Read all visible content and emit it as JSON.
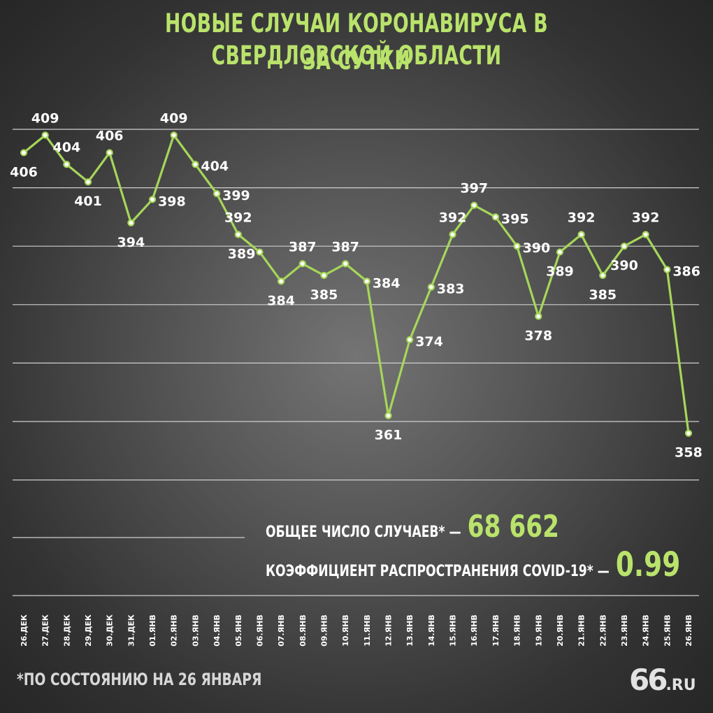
{
  "title_line1": "НОВЫЕ СЛУЧАИ КОРОНАВИРУСА В СВЕРДЛОВСКОЙ ОБЛАСТИ",
  "title_line2": "ЗА СУТКИ",
  "stats": {
    "total_label": "ОБЩЕЕ ЧИСЛО СЛУЧАЕВ* —",
    "total_value": "68 662",
    "coef_label": "КОЭФФИЦИЕНТ РАСПРОСТРАНЕНИЯ COVID-19* —",
    "coef_value": "0.99"
  },
  "footnote": "*ПО СОСТОЯНИЮ НА 26 ЯНВАРЯ",
  "logo": {
    "number": "66",
    "domain": ".RU"
  },
  "colors": {
    "line": "#a6d65a",
    "accent": "#b9e36b",
    "grid": "#cfcfcf",
    "text": "#ffffff"
  },
  "chart_data": {
    "type": "line",
    "title": "НОВЫЕ СЛУЧАИ КОРОНАВИРУСА В СВЕРДЛОВСКОЙ ОБЛАСТИ ЗА СУТКИ",
    "categories": [
      "26.ДЕК",
      "27.ДЕК",
      "28.ДЕК",
      "29.ДЕК",
      "30.ДЕК",
      "31.ДЕК",
      "01.ЯНВ",
      "02.ЯНВ",
      "03.ЯНВ",
      "04.ЯНВ",
      "05.ЯНВ",
      "06.ЯНВ",
      "07.ЯНВ",
      "08.ЯНВ",
      "09.ЯНВ",
      "10.ЯНВ",
      "11.ЯНВ",
      "12.ЯНВ",
      "13.ЯНВ",
      "14.ЯНВ",
      "15.ЯНВ",
      "16.ЯНВ",
      "17.ЯНВ",
      "18.ЯНВ",
      "19.ЯНВ",
      "20.ЯНВ",
      "21.ЯНВ",
      "22.ЯНВ",
      "23.ЯНВ",
      "24.ЯНВ",
      "25.ЯНВ",
      "26.ЯНВ"
    ],
    "values": [
      406,
      409,
      404,
      401,
      406,
      394,
      398,
      409,
      404,
      399,
      392,
      389,
      384,
      387,
      385,
      387,
      384,
      361,
      374,
      383,
      392,
      397,
      395,
      390,
      378,
      389,
      392,
      385,
      390,
      392,
      386,
      358
    ],
    "label_pos": [
      "below",
      "above",
      "above",
      "below",
      "above",
      "below",
      "right",
      "above",
      "right",
      "right",
      "above",
      "left",
      "below",
      "above",
      "below",
      "above",
      "right",
      "below",
      "right",
      "right",
      "above",
      "above",
      "right",
      "right",
      "below",
      "below",
      "above",
      "below",
      "below",
      "above",
      "right",
      "below"
    ],
    "ylim": [
      355,
      410
    ],
    "grid": true,
    "legend": "none"
  }
}
